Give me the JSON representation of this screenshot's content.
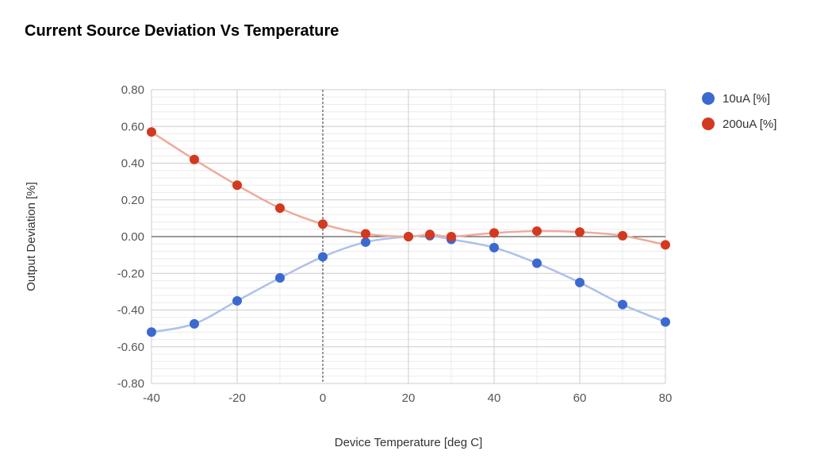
{
  "chart_data": {
    "type": "line",
    "title": "Current Source Deviation Vs Temperature",
    "xlabel": "Device Temperature [deg C]",
    "ylabel": "Output Deviation [%]",
    "xlim": [
      -40,
      80
    ],
    "ylim": [
      -0.8,
      0.8
    ],
    "x_ticks": [
      -40,
      -20,
      0,
      20,
      40,
      60,
      80
    ],
    "x_tick_labels": [
      "-40",
      "-20",
      "0",
      "20",
      "40",
      "60",
      "80"
    ],
    "y_ticks": [
      -0.8,
      -0.6,
      -0.4,
      -0.2,
      0,
      0.2,
      0.4,
      0.6,
      0.8
    ],
    "y_tick_labels": [
      "-0.80",
      "-0.60",
      "-0.40",
      "-0.20",
      "0.00",
      "0.20",
      "0.40",
      "0.60",
      "0.80"
    ],
    "grid": true,
    "smooth": true,
    "legend_position": "right",
    "x": [
      -40,
      -30,
      -20,
      -10,
      0,
      10,
      20,
      25,
      30,
      40,
      50,
      60,
      70,
      80
    ],
    "series": [
      {
        "name": "10uA [%]",
        "marker_color": "#3c69d0",
        "line_color": "#aec1ea",
        "values": [
          -0.52,
          -0.475,
          -0.35,
          -0.225,
          -0.11,
          -0.03,
          0.0,
          0.005,
          -0.015,
          -0.06,
          -0.145,
          -0.25,
          -0.37,
          -0.465
        ]
      },
      {
        "name": "200uA [%]",
        "marker_color": "#d2391f",
        "line_color": "#eeaa9d",
        "values": [
          0.57,
          0.42,
          0.28,
          0.155,
          0.068,
          0.015,
          0.0,
          0.012,
          0.0,
          0.02,
          0.03,
          0.025,
          0.005,
          -0.045
        ]
      }
    ]
  }
}
